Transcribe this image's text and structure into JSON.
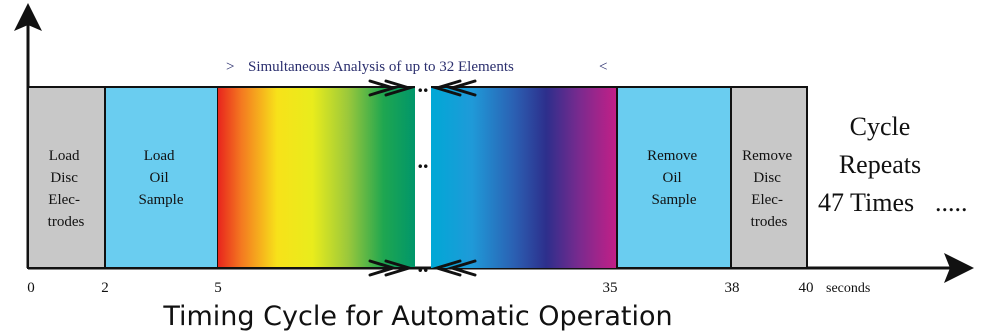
{
  "banner": {
    "left_marker": ">",
    "text": "Simultaneous Analysis of up to 32 Elements",
    "right_marker": "<"
  },
  "segments": [
    {
      "lines": [
        "Load",
        "Disc",
        "Elec-",
        "trodes"
      ],
      "color": "#c8c8c8"
    },
    {
      "lines": [
        "Load",
        "Oil",
        "Sample"
      ],
      "color": "#6acdf0"
    },
    {
      "lines": [
        "Remove",
        "Oil",
        "Sample"
      ],
      "color": "#6acdf0"
    },
    {
      "lines": [
        "Remove",
        "Disc",
        "Elec-",
        "trodes"
      ],
      "color": "#c8c8c8"
    }
  ],
  "gap_marks": {
    "top": "..",
    "middle": "..",
    "bottom": ".."
  },
  "cycle_note": [
    "Cycle",
    "Repeats",
    "47 Times",
    "....."
  ],
  "axis": {
    "ticks": [
      "0",
      "2",
      "5",
      "35",
      "38",
      "40"
    ],
    "unit": "seconds"
  },
  "title": "Timing Cycle for Automatic Operation",
  "colors": {
    "grey_phase": "#c8c8c8",
    "blue_phase": "#6acdf0",
    "axis": "#111111"
  }
}
